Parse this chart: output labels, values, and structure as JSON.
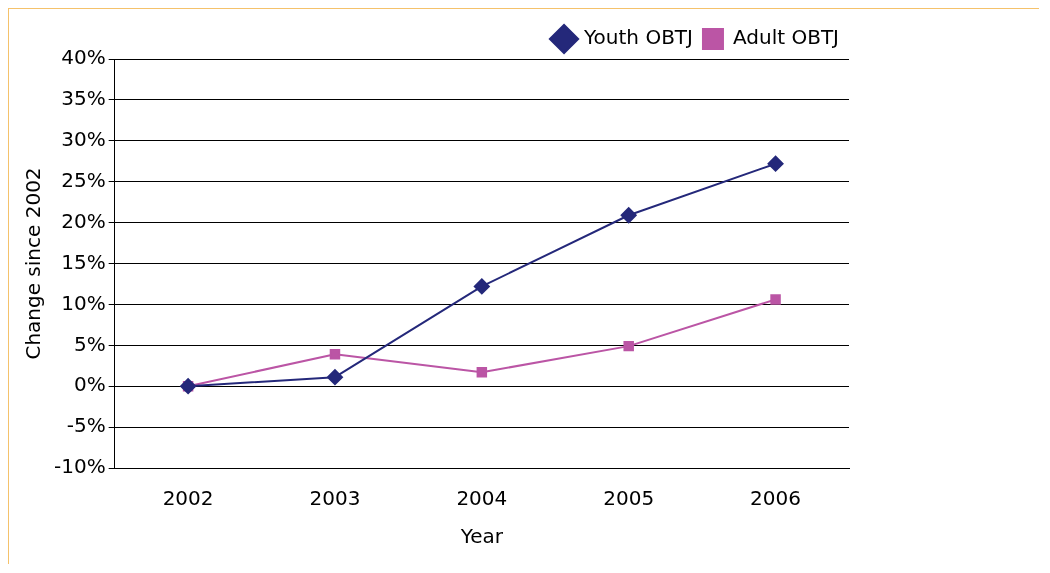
{
  "chart_data": {
    "type": "line",
    "xlabel": "Year",
    "ylabel": "Change since 2002",
    "categories": [
      "2002",
      "2003",
      "2004",
      "2005",
      "2006"
    ],
    "series": [
      {
        "name": "Youth OBTJ",
        "color": "#24287a",
        "marker": "diamond",
        "values": [
          0,
          1.1,
          12.2,
          20.9,
          27.2
        ]
      },
      {
        "name": "Adult OBTJ",
        "color": "#bb55a5",
        "marker": "square",
        "values": [
          0,
          3.9,
          1.7,
          4.9,
          10.6
        ]
      }
    ],
    "ylim": [
      -10,
      40
    ],
    "yticks": [
      {
        "value": -10,
        "label": "-10%"
      },
      {
        "value": -5,
        "label": "-5%"
      },
      {
        "value": 0,
        "label": "0%"
      },
      {
        "value": 5,
        "label": "5%"
      },
      {
        "value": 10,
        "label": "10%"
      },
      {
        "value": 15,
        "label": "15%"
      },
      {
        "value": 20,
        "label": "20%"
      },
      {
        "value": 25,
        "label": "25%"
      },
      {
        "value": 30,
        "label": "30%"
      },
      {
        "value": 35,
        "label": "35%"
      },
      {
        "value": 40,
        "label": "40%"
      }
    ],
    "grid": "y",
    "legend": "top right"
  }
}
